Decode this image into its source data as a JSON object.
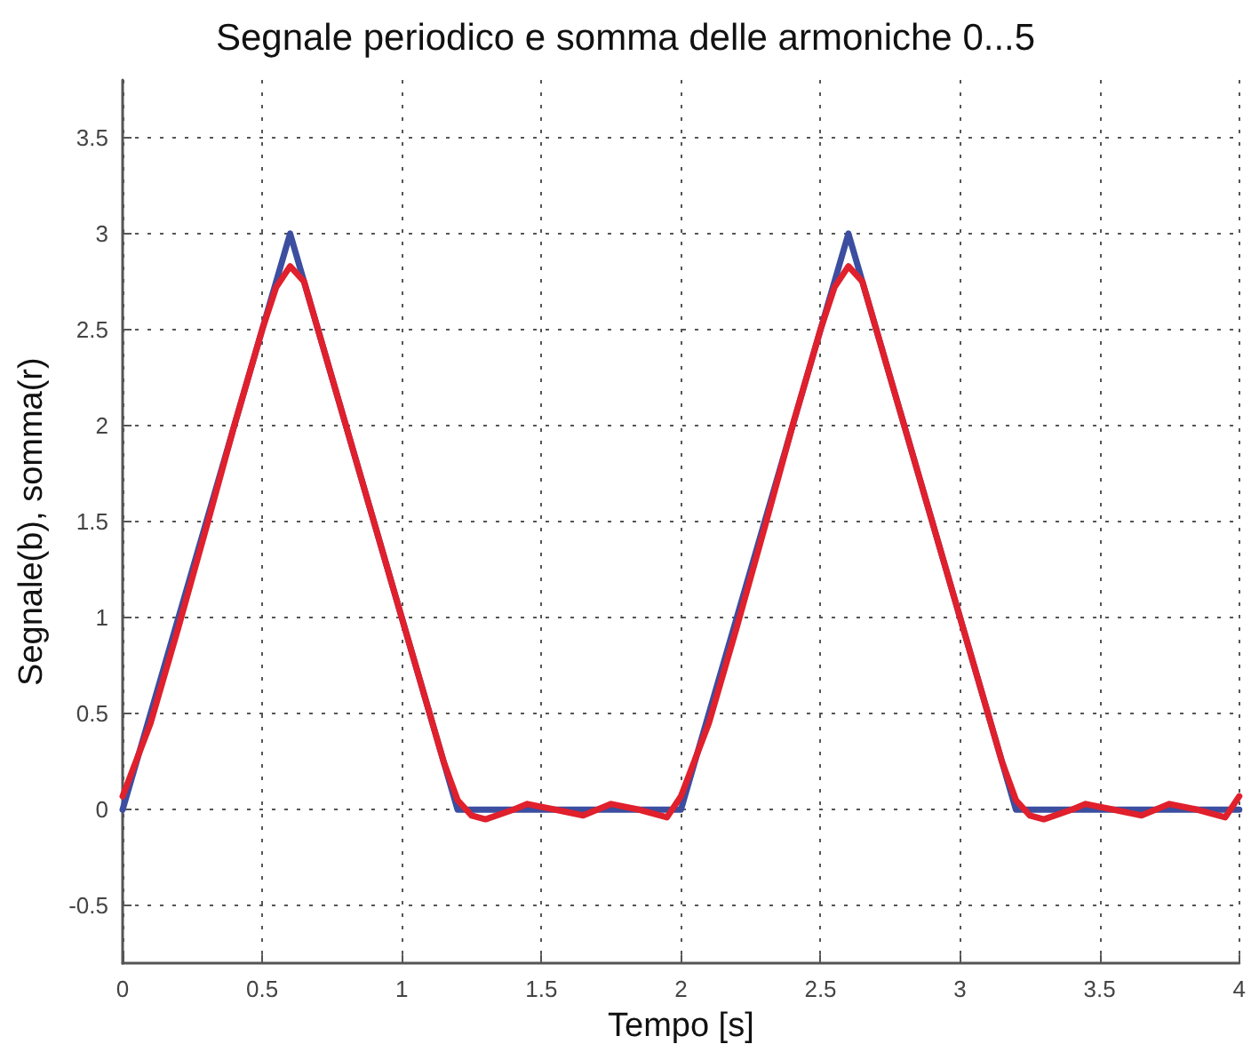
{
  "chart_data": {
    "type": "line",
    "title": "Segnale periodico e somma delle armoniche 0...5",
    "xlabel": "Tempo [s]",
    "ylabel": "Segnale(b), somma(r)",
    "xlim": [
      0,
      4
    ],
    "xticks": [
      0,
      0.5,
      1,
      1.5,
      2,
      2.5,
      3,
      3.5,
      4
    ],
    "ylim": [
      -0.8,
      3.8
    ],
    "yticks": [
      -0.5,
      0,
      0.5,
      1,
      1.5,
      2,
      2.5,
      3,
      3.5
    ],
    "grid": true,
    "marker": "none",
    "line_style": "solid",
    "series": [
      {
        "color": "#3b4ea0",
        "x": [
          0,
          0.6,
          1.2,
          2,
          2.6,
          3.2,
          4
        ],
        "values": [
          0,
          3,
          0,
          0,
          3,
          0,
          0
        ]
      },
      {
        "color": "#e0202c",
        "x": [
          0,
          0.1,
          0.2,
          0.3,
          0.4,
          0.5,
          0.55,
          0.6,
          0.65,
          0.7,
          0.8,
          0.9,
          1,
          1.1,
          1.15,
          1.2,
          1.25,
          1.3,
          1.4,
          1.45,
          1.55,
          1.65,
          1.75,
          1.85,
          1.95,
          2,
          2.1,
          2.2,
          2.3,
          2.4,
          2.5,
          2.55,
          2.6,
          2.65,
          2.7,
          2.8,
          2.9,
          3,
          3.1,
          3.15,
          3.2,
          3.25,
          3.3,
          3.4,
          3.45,
          3.55,
          3.65,
          3.75,
          3.85,
          3.95,
          4
        ],
        "values": [
          0.07,
          0.45,
          0.95,
          1.47,
          2,
          2.5,
          2.72,
          2.83,
          2.75,
          2.5,
          2,
          1.5,
          1,
          0.5,
          0.25,
          0.05,
          -0.03,
          -0.05,
          0,
          0.03,
          0,
          -0.03,
          0.03,
          0,
          -0.04,
          0.07,
          0.45,
          0.95,
          1.47,
          2,
          2.5,
          2.72,
          2.83,
          2.75,
          2.5,
          2,
          1.5,
          1,
          0.5,
          0.25,
          0.05,
          -0.03,
          -0.05,
          0,
          0.03,
          0,
          -0.03,
          0.03,
          0,
          -0.04,
          0.07
        ]
      }
    ]
  }
}
